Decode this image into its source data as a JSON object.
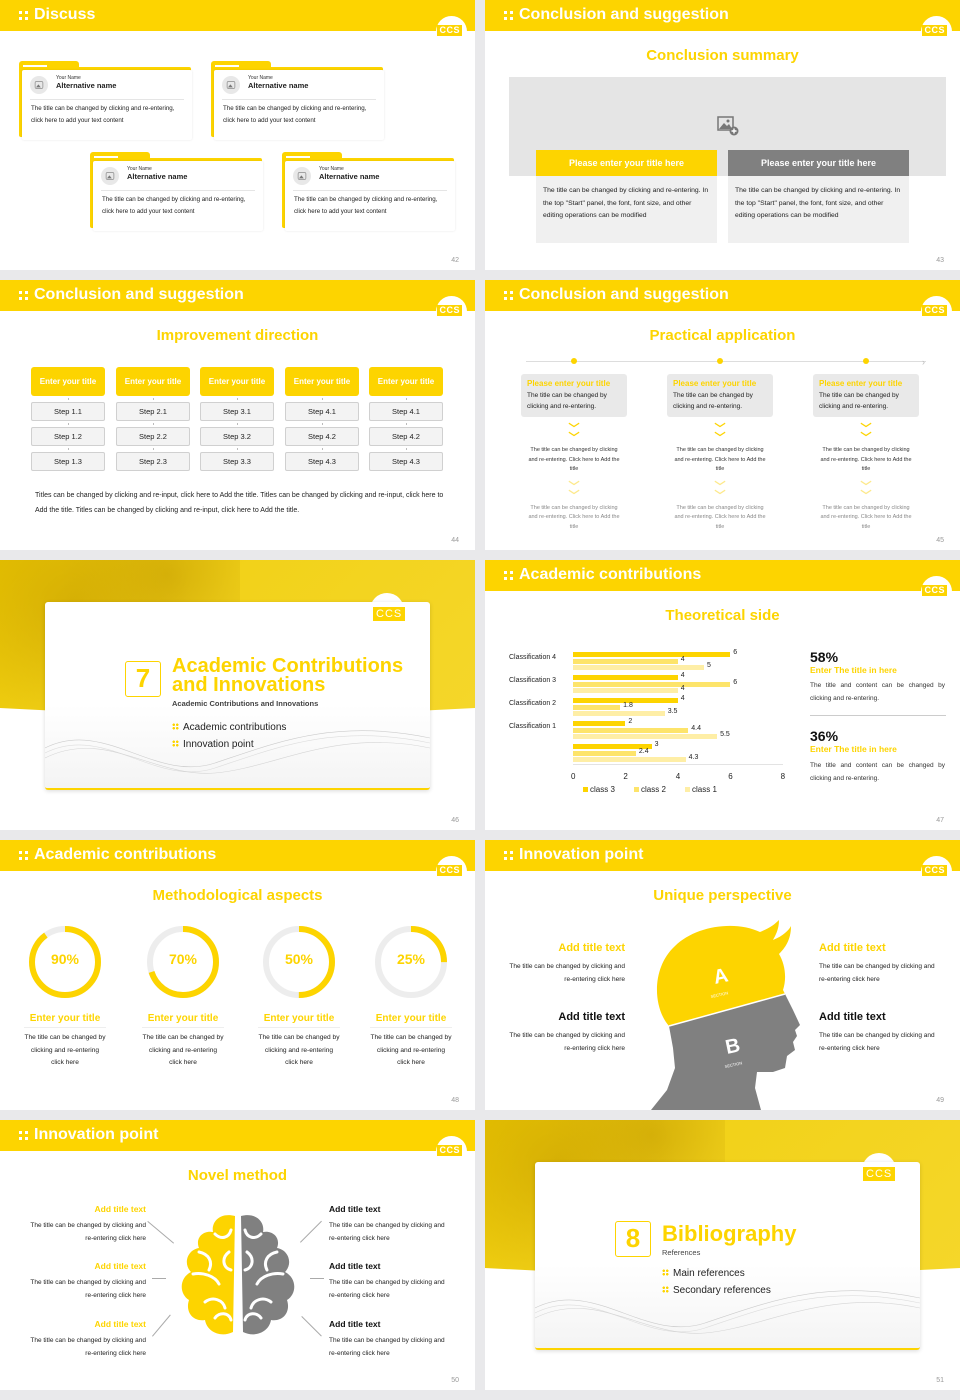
{
  "brand": {
    "logo": "CCS",
    "accent": "#fdd400",
    "gray": "#808080"
  },
  "slides": {
    "s42": {
      "header": "Discuss",
      "page": "42",
      "cards": [
        {
          "your_name": "Your Name",
          "alt_name": "Alternative name",
          "text": "The title can be changed by clicking and re-entering, click here to add your text content"
        },
        {
          "your_name": "Your Name",
          "alt_name": "Alternative name",
          "text": "The title can be changed by clicking and re-entering, click here to add your text content"
        },
        {
          "your_name": "Your Name",
          "alt_name": "Alternative name",
          "text": "The title can be changed by clicking and re-entering, click here to add your text content"
        },
        {
          "your_name": "Your Name",
          "alt_name": "Alternative name",
          "text": "The title can be changed by clicking and re-entering, click here to add your text content"
        }
      ]
    },
    "s43": {
      "header": "Conclusion and suggestion",
      "subtitle": "Conclusion summary",
      "page": "43",
      "boxes": [
        {
          "title": "Please enter your title here",
          "text": "The title can be changed by clicking and re-entering. In the top \"Start\" panel, the font, font size, and other editing operations can be modified"
        },
        {
          "title": "Please enter your title here",
          "text": "The title can be changed by clicking and re-entering. In the top \"Start\" panel, the font, font size, and other editing operations can be modified"
        }
      ]
    },
    "s44": {
      "header": "Conclusion and suggestion",
      "subtitle": "Improvement direction",
      "page": "44",
      "columns": [
        {
          "title": "Enter your title",
          "steps": [
            "Step 1.1",
            "Step 1.2",
            "Step 1.3"
          ]
        },
        {
          "title": "Enter your title",
          "steps": [
            "Step 2.1",
            "Step 2.2",
            "Step 2.3"
          ]
        },
        {
          "title": "Enter your title",
          "steps": [
            "Step 3.1",
            "Step 3.2",
            "Step 3.3"
          ]
        },
        {
          "title": "Enter your title",
          "steps": [
            "Step 4.1",
            "Step 4.2",
            "Step 4.3"
          ]
        },
        {
          "title": "Enter your title",
          "steps": [
            "Step 4.1",
            "Step 4.2",
            "Step 4.3"
          ]
        }
      ],
      "paragraph": "Titles can be changed by clicking and re-input, click here to Add the title. Titles can be changed by clicking and re-input, click here to Add the title. Titles can be changed by clicking and re-input, click here to Add the title."
    },
    "s45": {
      "header": "Conclusion and suggestion",
      "subtitle": "Practical application",
      "page": "45",
      "columns": [
        {
          "title": "Please enter your title",
          "desc": "The title can be changed by clicking and re-entering.",
          "text1": "The title can be changed by clicking and re-entering. Click here to Add the title",
          "text2": "The title can be changed by clicking and re-entering. Click here to Add the title"
        },
        {
          "title": "Please enter your title",
          "desc": "The title can be changed by clicking and re-entering.",
          "text1": "The title can be changed by clicking and re-entering. Click here to Add the title",
          "text2": "The title can be changed by clicking and re-entering. Click here to Add the title"
        },
        {
          "title": "Please enter your title",
          "desc": "The title can be changed by clicking and re-entering.",
          "text1": "The title can be changed by clicking and re-entering. Click here to Add the title",
          "text2": "The title can be changed by clicking and re-entering. Click here to Add the title"
        }
      ]
    },
    "s46": {
      "number": "7",
      "title_line1": "Academic Contributions",
      "title_line2": "and Innovations",
      "sub": "Academic Contributions and Innovations",
      "items": [
        "Academic contributions",
        "Innovation point"
      ],
      "page": "46"
    },
    "s47": {
      "header": "Academic contributions",
      "subtitle": "Theoretical side",
      "page": "47",
      "stats": [
        {
          "pct": "58%",
          "title": "Enter The title in here",
          "text": "The title and content can be changed by clicking and re-entering."
        },
        {
          "pct": "36%",
          "title": "Enter The title in here",
          "text": "The title and content can be changed by clicking and re-entering."
        }
      ]
    },
    "s48": {
      "header": "Academic contributions",
      "subtitle": "Methodological aspects",
      "page": "48",
      "rings": [
        {
          "value": "90%",
          "pct": 90,
          "title": "Enter your title",
          "text": "The title can be changed by clicking and re-entering click here"
        },
        {
          "value": "70%",
          "pct": 70,
          "title": "Enter your title",
          "text": "The title can be changed by clicking and re-entering click here"
        },
        {
          "value": "50%",
          "pct": 50,
          "title": "Enter your title",
          "text": "The title can be changed by clicking and re-entering click here"
        },
        {
          "value": "25%",
          "pct": 25,
          "title": "Enter your title",
          "text": "The title can be changed by clicking and re-entering click here"
        }
      ]
    },
    "s49": {
      "header": "Innovation point",
      "subtitle": "Unique perspective",
      "page": "49",
      "head_labels": {
        "a": "A",
        "a_sub": "SECTION",
        "b": "B",
        "b_sub": "SECTION"
      },
      "blocks": [
        {
          "title": "Add title text",
          "text": "The title can be changed by clicking and re-entering click here"
        },
        {
          "title": "Add title text",
          "text": "The title can be changed by clicking and re-entering click here"
        },
        {
          "title": "Add title text",
          "text": "The title can be changed by clicking and re-entering click here"
        },
        {
          "title": "Add title text",
          "text": "The title can be changed by clicking and re-entering click here"
        }
      ]
    },
    "s50": {
      "header": "Innovation point",
      "subtitle": "Novel method",
      "page": "50",
      "blocks": [
        {
          "title": "Add title text",
          "text": "The title can be changed by clicking and re-entering click here"
        },
        {
          "title": "Add title text",
          "text": "The title can be changed by clicking and re-entering click here"
        },
        {
          "title": "Add title text",
          "text": "The title can be changed by clicking and re-entering click here"
        },
        {
          "title": "Add title text",
          "text": "The title can be changed by clicking and re-entering click here"
        },
        {
          "title": "Add title text",
          "text": "The title can be changed by clicking and re-entering click here"
        },
        {
          "title": "Add title text",
          "text": "The title can be changed by clicking and re-entering click here"
        }
      ]
    },
    "s51": {
      "number": "8",
      "title_line1": "Bibliography",
      "sub": "References",
      "items": [
        "Main references",
        "Secondary references"
      ],
      "page": "51"
    }
  },
  "chart_data": {
    "type": "bar",
    "orientation": "horizontal",
    "title": "Theoretical side",
    "categories": [
      "",
      "Classification 1",
      "Classification 2",
      "Classification 3",
      "Classification 4"
    ],
    "series": [
      {
        "name": "class 3",
        "color": "#fdd400",
        "values": [
          3,
          2,
          4,
          4,
          6
        ]
      },
      {
        "name": "class 2",
        "color": "#fde46a",
        "values": [
          2.4,
          4.4,
          1.8,
          6,
          4
        ]
      },
      {
        "name": "class 1",
        "color": "#feeea6",
        "values": [
          4.3,
          5.5,
          3.5,
          4,
          5
        ]
      }
    ],
    "xlim": [
      0,
      8
    ],
    "xticks": [
      0,
      2,
      4,
      6,
      8
    ],
    "legend_position": "bottom",
    "grid": false
  }
}
